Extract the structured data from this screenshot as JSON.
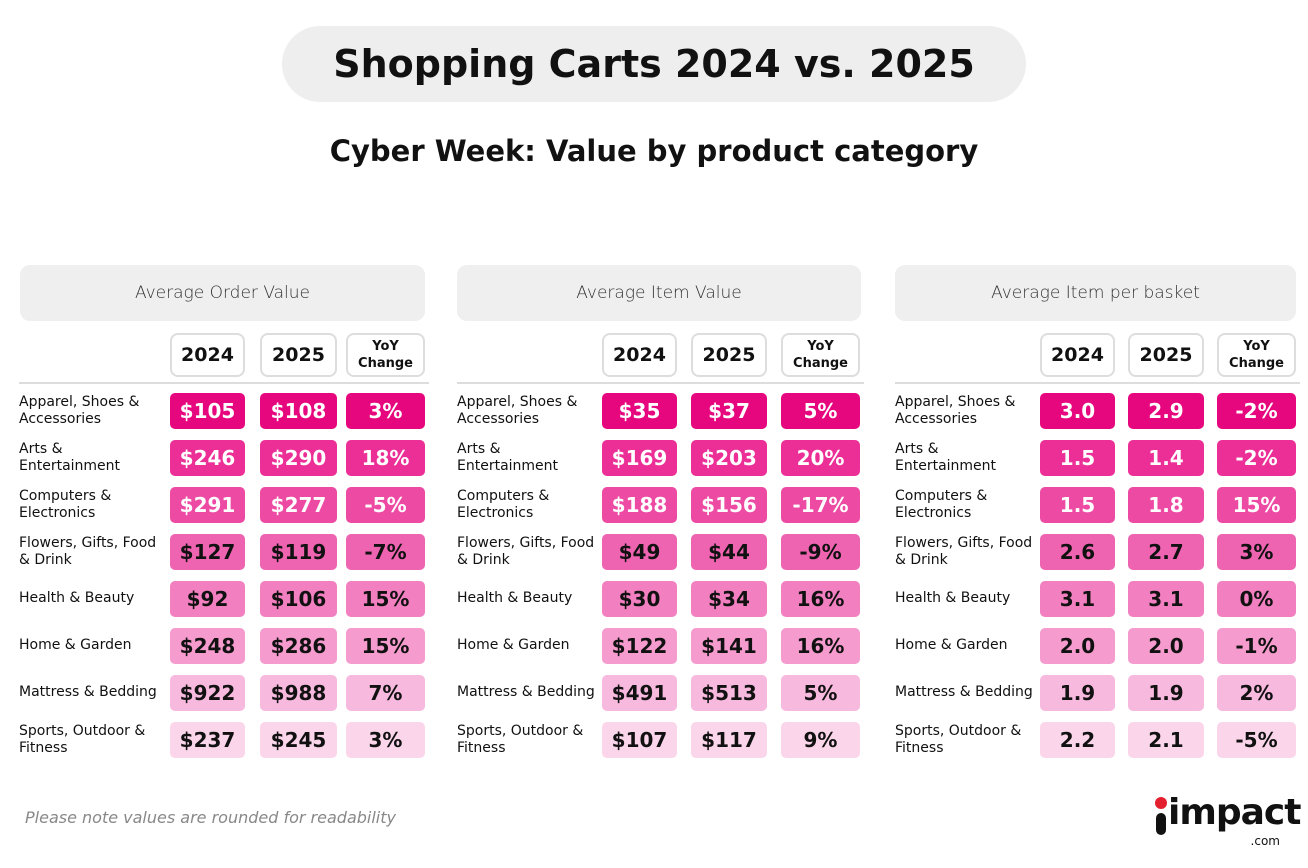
{
  "header": {
    "title": "Shopping Carts 2024 vs. 2025",
    "subtitle": "Cyber Week: Value by product category"
  },
  "tables": [
    {
      "title": "Average Order Value",
      "columns": [
        "2024",
        "2025",
        "YoY Change"
      ],
      "rows": [
        [
          "Apparel, Shoes & Accessories",
          "$105",
          "$108",
          "3%"
        ],
        [
          "Arts & Entertainment",
          "$246",
          "$290",
          "18%"
        ],
        [
          "Computers & Electronics",
          "$291",
          "$277",
          "-5%"
        ],
        [
          "Flowers, Gifts, Food & Drink",
          "$127",
          "$119",
          "-7%"
        ],
        [
          "Health & Beauty",
          "$92",
          "$106",
          "15%"
        ],
        [
          "Home & Garden",
          "$248",
          "$286",
          "15%"
        ],
        [
          "Mattress & Bedding",
          "$922",
          "$988",
          "7%"
        ],
        [
          "Sports, Outdoor & Fitness",
          "$237",
          "$245",
          "3%"
        ]
      ]
    },
    {
      "title": "Average Item Value",
      "columns": [
        "2024",
        "2025",
        "YoY Change"
      ],
      "rows": [
        [
          "Apparel, Shoes & Accessories",
          "$35",
          "$37",
          "5%"
        ],
        [
          "Arts & Entertainment",
          "$169",
          "$203",
          "20%"
        ],
        [
          "Computers & Electronics",
          "$188",
          "$156",
          "-17%"
        ],
        [
          "Flowers, Gifts, Food & Drink",
          "$49",
          "$44",
          "-9%"
        ],
        [
          "Health & Beauty",
          "$30",
          "$34",
          "16%"
        ],
        [
          "Home & Garden",
          "$122",
          "$141",
          "16%"
        ],
        [
          "Mattress & Bedding",
          "$491",
          "$513",
          "5%"
        ],
        [
          "Sports, Outdoor & Fitness",
          "$107",
          "$117",
          "9%"
        ]
      ]
    },
    {
      "title": "Average Item per basket",
      "columns": [
        "2024",
        "2025",
        "YoY Change"
      ],
      "rows": [
        [
          "Apparel, Shoes & Accessories",
          "3.0",
          "2.9",
          "-2%"
        ],
        [
          "Arts & Entertainment",
          "1.5",
          "1.4",
          "-2%"
        ],
        [
          "Computers & Electronics",
          "1.5",
          "1.8",
          "15%"
        ],
        [
          "Flowers, Gifts, Food & Drink",
          "2.6",
          "2.7",
          "3%"
        ],
        [
          "Health & Beauty",
          "3.1",
          "3.1",
          "0%"
        ],
        [
          "Home & Garden",
          "2.0",
          "2.0",
          "-1%"
        ],
        [
          "Mattress & Bedding",
          "1.9",
          "1.9",
          "2%"
        ],
        [
          "Sports, Outdoor & Fitness",
          "2.2",
          "2.1",
          "-5%"
        ]
      ]
    }
  ],
  "footnote": "Please note values are rounded for readability",
  "logo": {
    "name": "impact",
    "suffix": ".com"
  }
}
